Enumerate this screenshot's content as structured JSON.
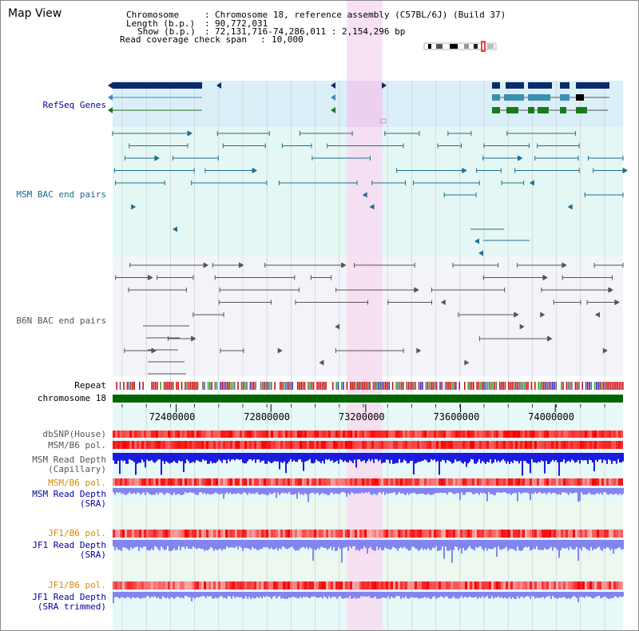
{
  "title": "Map View",
  "header": {
    "chromosome_key": "Chromosome",
    "chromosome_val": "Chromosome 18, reference assembly (C57BL/6J) (Build 37)",
    "length_key": "Length (b.p.)",
    "length_val": "90,772,031",
    "show_key": "Show (b.p.)",
    "show_val": "72,131,716-74,286,011 : 2,154,296 bp",
    "coverage_key": "Read coverage check span",
    "coverage_val": "10,000"
  },
  "tracks": {
    "refseq": "RefSeq Genes",
    "msm_bac": "MSM BAC end pairs",
    "b6n_bac": "B6N BAC end pairs",
    "repeat": "Repeat",
    "chromosome": "chromosome 18",
    "dbsnp": "dbSNP(House)",
    "msm_b6_pol_1": "MSM/B6 pol.",
    "msm_read_depth_cap_1": "MSM Read Depth",
    "msm_read_depth_cap_2": "(Capillary)",
    "msm_b6_pol_2": "MSM/B6 pol.",
    "msm_read_depth_sra_1": "MSM Read Depth",
    "msm_read_depth_sra_2": "(SRA)",
    "jf1_b6_pol_1": "JF1/B6 pol.",
    "jf1_read_depth_sra_1": "JF1 Read Depth",
    "jf1_read_depth_sra_2": "(SRA)",
    "jf1_b6_pol_2": "JF1/B6 pol.",
    "jf1_read_depth_trim_1": "JF1 Read Depth",
    "jf1_read_depth_trim_2": "(SRA trimmed)"
  },
  "axis_ticks": [
    {
      "label": "72400000",
      "value": 72400000
    },
    {
      "label": "72800000",
      "value": 72800000
    },
    {
      "label": "73200000",
      "value": 73200000
    },
    {
      "label": "73600000",
      "value": 73600000
    },
    {
      "label": "74000000",
      "value": 74000000
    }
  ],
  "range": {
    "start": 72131716,
    "end": 74286011
  },
  "highlight": {
    "start": 73120000,
    "end": 73270000
  },
  "colors": {
    "refseq_bg": "#dbeff9",
    "bac_bg": "#e4f7f5",
    "b6n_bg": "#f3f4f9",
    "highlight": "#f7dcf1",
    "chromosome": "#006600",
    "dark_gene": "#0a2a6a",
    "mid_gene": "#3b8fb0",
    "green_gene": "#1a7a1a",
    "msm_pair": "#1f6f8f",
    "b6n_pair": "#555555",
    "depth_cap": "#1b1be0",
    "depth_sra": "#8484f0"
  }
}
